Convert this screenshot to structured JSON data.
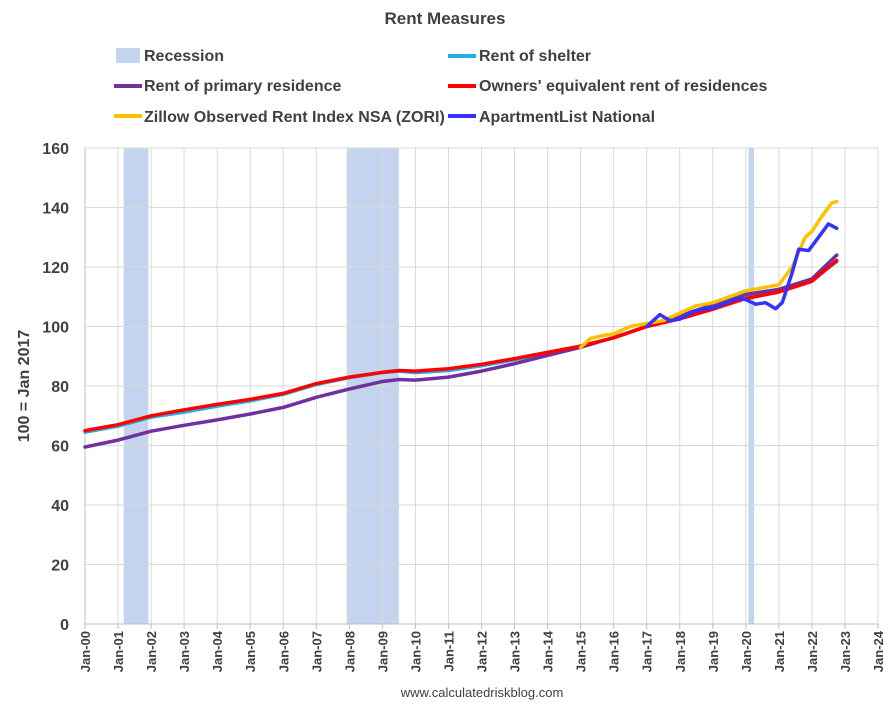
{
  "chart_data": {
    "type": "line",
    "title": "Rent Measures",
    "ylabel": "100 = Jan 2017",
    "xlabel": "",
    "source": "www.calculatedriskblog.com",
    "ylim": [
      0,
      160
    ],
    "yticks": [
      0,
      20,
      40,
      60,
      80,
      100,
      120,
      140,
      160
    ],
    "xlim": [
      2000,
      2024
    ],
    "xticks": [
      {
        "year": 2000,
        "label": "Jan-00"
      },
      {
        "year": 2001,
        "label": "Jan-01"
      },
      {
        "year": 2002,
        "label": "Jan-02"
      },
      {
        "year": 2003,
        "label": "Jan-03"
      },
      {
        "year": 2004,
        "label": "Jan-04"
      },
      {
        "year": 2005,
        "label": "Jan-05"
      },
      {
        "year": 2006,
        "label": "Jan-06"
      },
      {
        "year": 2007,
        "label": "Jan-07"
      },
      {
        "year": 2008,
        "label": "Jan-08"
      },
      {
        "year": 2009,
        "label": "Jan-09"
      },
      {
        "year": 2010,
        "label": "Jan-10"
      },
      {
        "year": 2011,
        "label": "Jan-11"
      },
      {
        "year": 2012,
        "label": "Jan-12"
      },
      {
        "year": 2013,
        "label": "Jan-13"
      },
      {
        "year": 2014,
        "label": "Jan-14"
      },
      {
        "year": 2015,
        "label": "Jan-15"
      },
      {
        "year": 2016,
        "label": "Jan-16"
      },
      {
        "year": 2017,
        "label": "Jan-17"
      },
      {
        "year": 2018,
        "label": "Jan-18"
      },
      {
        "year": 2019,
        "label": "Jan-19"
      },
      {
        "year": 2020,
        "label": "Jan-20"
      },
      {
        "year": 2021,
        "label": "Jan-21"
      },
      {
        "year": 2022,
        "label": "Jan-22"
      },
      {
        "year": 2023,
        "label": "Jan-23"
      },
      {
        "year": 2024,
        "label": "Jan-24"
      }
    ],
    "grid": true,
    "legend_position": "top",
    "recession": {
      "name": "Recession",
      "color": "#c5d4ee",
      "periods": [
        [
          2001.17,
          2001.92
        ],
        [
          2007.92,
          2009.5
        ],
        [
          2020.08,
          2020.25
        ]
      ]
    },
    "series": [
      {
        "name": "Rent of shelter",
        "color": "#21b0e8",
        "points": [
          [
            2000,
            64.5
          ],
          [
            2001,
            66.5
          ],
          [
            2002,
            69.5
          ],
          [
            2003,
            71.2
          ],
          [
            2004,
            73.2
          ],
          [
            2005,
            75.0
          ],
          [
            2006,
            77.2
          ],
          [
            2007,
            80.5
          ],
          [
            2008,
            82.8
          ],
          [
            2009,
            84.5
          ],
          [
            2009.5,
            85.0
          ],
          [
            2010,
            84.5
          ],
          [
            2011,
            85.2
          ],
          [
            2012,
            86.8
          ],
          [
            2013,
            88.8
          ],
          [
            2014,
            91.0
          ],
          [
            2015,
            93.3
          ],
          [
            2016,
            96.2
          ],
          [
            2017,
            100.0
          ],
          [
            2018,
            102.8
          ],
          [
            2019,
            106.2
          ],
          [
            2020,
            109.8
          ],
          [
            2021,
            111.8
          ],
          [
            2022,
            115.6
          ],
          [
            2022.75,
            121.8
          ]
        ]
      },
      {
        "name": "Rent of primary residence",
        "color": "#7030a0",
        "points": [
          [
            2000,
            59.5
          ],
          [
            2001,
            61.8
          ],
          [
            2002,
            64.8
          ],
          [
            2003,
            66.8
          ],
          [
            2004,
            68.6
          ],
          [
            2005,
            70.6
          ],
          [
            2006,
            72.8
          ],
          [
            2007,
            76.2
          ],
          [
            2008,
            79.0
          ],
          [
            2009,
            81.5
          ],
          [
            2009.5,
            82.2
          ],
          [
            2010,
            82.0
          ],
          [
            2011,
            83.0
          ],
          [
            2012,
            85.0
          ],
          [
            2013,
            87.5
          ],
          [
            2014,
            90.3
          ],
          [
            2015,
            93.0
          ],
          [
            2016,
            96.3
          ],
          [
            2017,
            100.0
          ],
          [
            2018,
            103.7
          ],
          [
            2019,
            107.2
          ],
          [
            2020,
            110.8
          ],
          [
            2021,
            112.5
          ],
          [
            2022,
            116.0
          ],
          [
            2022.75,
            124.0
          ]
        ]
      },
      {
        "name": "Owners' equivalent rent of residences",
        "color": "#ff0000",
        "points": [
          [
            2000,
            65.0
          ],
          [
            2001,
            67.0
          ],
          [
            2002,
            70.0
          ],
          [
            2003,
            72.0
          ],
          [
            2004,
            73.8
          ],
          [
            2005,
            75.5
          ],
          [
            2006,
            77.5
          ],
          [
            2007,
            80.8
          ],
          [
            2008,
            83.0
          ],
          [
            2009,
            84.6
          ],
          [
            2009.5,
            85.2
          ],
          [
            2010,
            85.0
          ],
          [
            2011,
            85.8
          ],
          [
            2012,
            87.3
          ],
          [
            2013,
            89.2
          ],
          [
            2014,
            91.3
          ],
          [
            2015,
            93.4
          ],
          [
            2016,
            96.2
          ],
          [
            2017,
            100.0
          ],
          [
            2018,
            102.6
          ],
          [
            2019,
            105.8
          ],
          [
            2020,
            109.4
          ],
          [
            2020.5,
            110.5
          ],
          [
            2021,
            111.6
          ],
          [
            2022,
            115.2
          ],
          [
            2022.75,
            122.2
          ]
        ]
      },
      {
        "name": "Zillow Observed Rent Index NSA (ZORI)",
        "color": "#ffc000",
        "points": [
          [
            2015,
            93.0
          ],
          [
            2015.3,
            96.0
          ],
          [
            2015.7,
            97.0
          ],
          [
            2016,
            97.5
          ],
          [
            2016.5,
            100.0
          ],
          [
            2017,
            101.0
          ],
          [
            2017.5,
            102.0
          ],
          [
            2018,
            104.5
          ],
          [
            2018.5,
            107.0
          ],
          [
            2019,
            108.0
          ],
          [
            2019.5,
            110.0
          ],
          [
            2020,
            112.0
          ],
          [
            2020.5,
            113.0
          ],
          [
            2021,
            114.0
          ],
          [
            2021.4,
            120.0
          ],
          [
            2021.8,
            130.0
          ],
          [
            2022,
            132.0
          ],
          [
            2022.3,
            137.0
          ],
          [
            2022.6,
            141.5
          ],
          [
            2022.75,
            142.0
          ]
        ]
      },
      {
        "name": "ApartmentList National",
        "color": "#3333ff",
        "points": [
          [
            2017,
            100.0
          ],
          [
            2017.4,
            104.0
          ],
          [
            2017.7,
            102.0
          ],
          [
            2018,
            102.5
          ],
          [
            2018.4,
            105.0
          ],
          [
            2018.8,
            106.0
          ],
          [
            2019,
            106.2
          ],
          [
            2019.4,
            108.0
          ],
          [
            2019.8,
            109.5
          ],
          [
            2020,
            109.0
          ],
          [
            2020.3,
            107.5
          ],
          [
            2020.6,
            108.0
          ],
          [
            2020.9,
            106.0
          ],
          [
            2021.1,
            108.0
          ],
          [
            2021.4,
            118.0
          ],
          [
            2021.6,
            126.0
          ],
          [
            2021.9,
            125.5
          ],
          [
            2022.2,
            130.0
          ],
          [
            2022.5,
            134.5
          ],
          [
            2022.75,
            133.0
          ]
        ]
      }
    ]
  }
}
